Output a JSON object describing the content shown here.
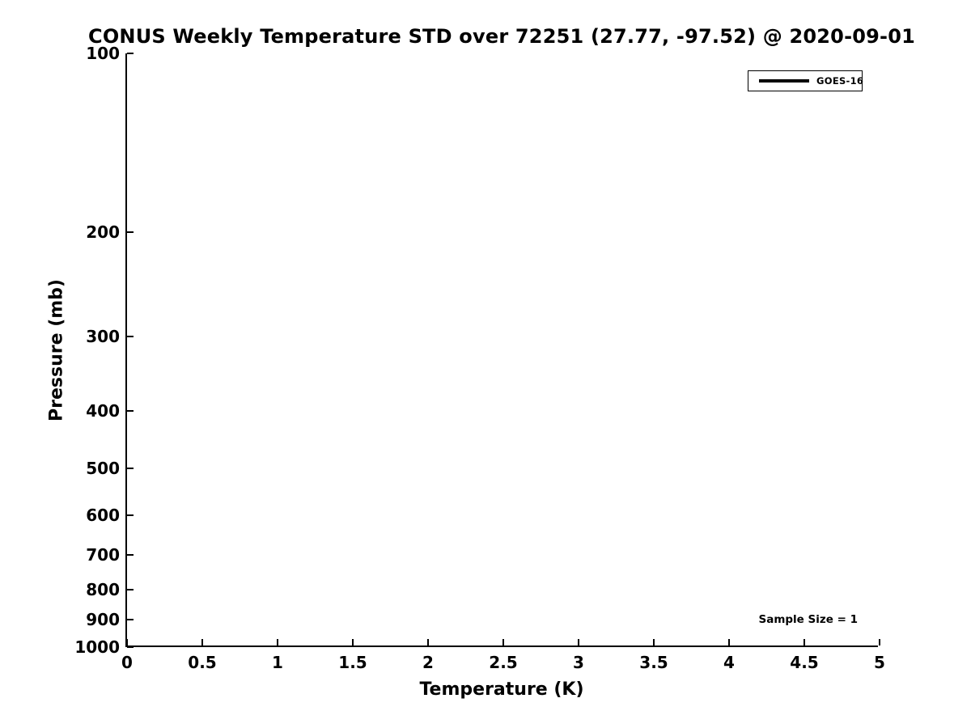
{
  "figure": {
    "background_color": "#ffffff",
    "axis_color": "#000000",
    "text_color": "#000000"
  },
  "chart_data": {
    "type": "line",
    "title": "CONUS Weekly Temperature STD over 72251 (27.77, -97.52) @ 2020-09-01",
    "xlabel": "Temperature (K)",
    "ylabel": "Pressure (mb)",
    "xlim": [
      0,
      5
    ],
    "ylim": [
      1000,
      100
    ],
    "yscale": "log",
    "y_axis_inverted": true,
    "grid": false,
    "x_tick_values": [
      0,
      0.5,
      1,
      1.5,
      2,
      2.5,
      3,
      3.5,
      4,
      4.5,
      5
    ],
    "x_tick_labels": [
      "0",
      "0.5",
      "1",
      "1.5",
      "2",
      "2.5",
      "3",
      "3.5",
      "4",
      "4.5",
      "5"
    ],
    "y_tick_values": [
      100,
      200,
      300,
      400,
      500,
      600,
      700,
      800,
      900,
      1000
    ],
    "y_tick_labels": [
      "100",
      "200",
      "300",
      "400",
      "500",
      "600",
      "700",
      "800",
      "900",
      "1000"
    ],
    "legend": {
      "position": "top-right",
      "entries": [
        {
          "label": "GOES-16",
          "color": "#000000"
        }
      ]
    },
    "series": [
      {
        "name": "GOES-16",
        "color": "#000000",
        "x": [],
        "y": []
      }
    ],
    "annotation": "Sample Size = 1",
    "sample_size": 1
  }
}
